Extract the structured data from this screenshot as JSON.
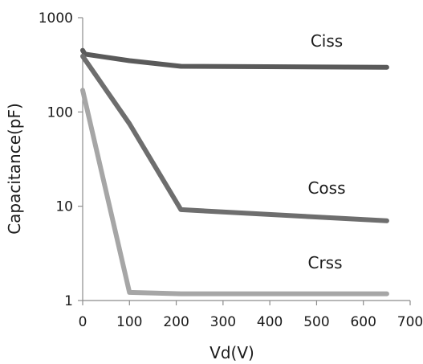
{
  "chart_data": {
    "type": "line",
    "title": "",
    "xlabel": "Vd(V)",
    "ylabel": "Capacitance(pF)",
    "xlim": [
      0,
      700
    ],
    "ylim": [
      1,
      1000
    ],
    "y_scale": "log",
    "x_ticks": [
      "0",
      "100",
      "200",
      "300",
      "400",
      "500",
      "600",
      "700"
    ],
    "y_ticks": [
      "1",
      "10",
      "100",
      "1000"
    ],
    "grid": false,
    "legend": "none",
    "series": [
      {
        "name": "Ciss",
        "color": "#5a5a5a",
        "points": [
          [
            0,
            450
          ],
          [
            5,
            410
          ],
          [
            100,
            350
          ],
          [
            210,
            305
          ],
          [
            650,
            298
          ]
        ]
      },
      {
        "name": "Coss",
        "color": "#6e6e6e",
        "points": [
          [
            0,
            390
          ],
          [
            100,
            75
          ],
          [
            210,
            9.2
          ],
          [
            650,
            7.0
          ]
        ]
      },
      {
        "name": "Crss",
        "color": "#a6a6a6",
        "points": [
          [
            0,
            170
          ],
          [
            100,
            1.22
          ],
          [
            210,
            1.18
          ],
          [
            650,
            1.18
          ]
        ]
      }
    ]
  }
}
